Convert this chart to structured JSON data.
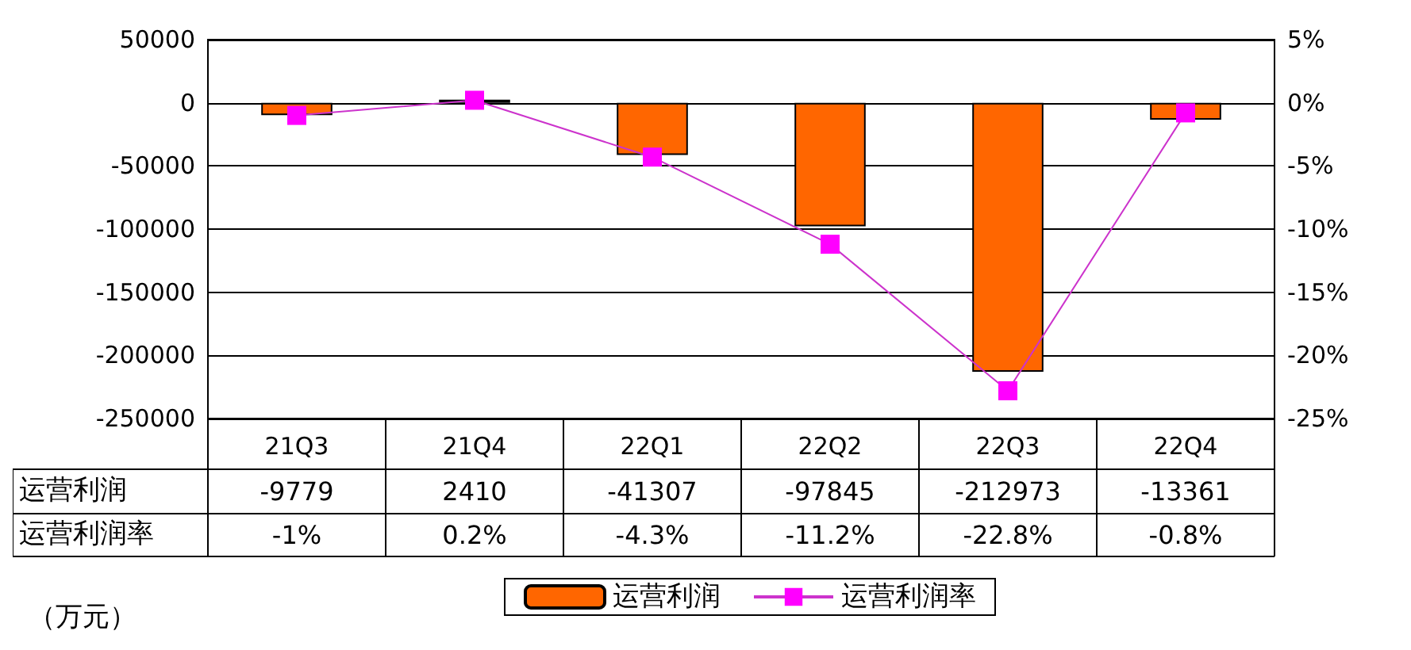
{
  "chart_data": {
    "type": "bar",
    "categories": [
      "21Q3",
      "21Q4",
      "22Q1",
      "22Q2",
      "22Q3",
      "22Q4"
    ],
    "series": [
      {
        "name": "运营利润",
        "color": "#ff6600",
        "values": [
          -9779,
          2410,
          -41307,
          -97845,
          -212973,
          -13361
        ],
        "value_labels": [
          "-9779",
          "2410",
          "-41307",
          "-97845",
          "-212973",
          "-13361"
        ]
      },
      {
        "name": "运营利润率",
        "type": "line",
        "axis": "y2",
        "color": "#ff00ff",
        "values": [
          -1,
          0.2,
          -4.3,
          -11.2,
          -22.8,
          -0.8
        ],
        "value_labels": [
          "-1%",
          "0.2%",
          "-4.3%",
          "-11.2%",
          "-22.8%",
          "-0.8%"
        ]
      }
    ],
    "ylim": [
      -250000,
      50000
    ],
    "yticks": [
      -250000,
      -200000,
      -150000,
      -100000,
      -50000,
      0,
      50000
    ],
    "y2lim": [
      -25,
      5
    ],
    "y2ticks": [
      {
        "value": -25,
        "label": "-25%"
      },
      {
        "value": -20,
        "label": "-20%"
      },
      {
        "value": -15,
        "label": "-15%"
      },
      {
        "value": -10,
        "label": "-10%"
      },
      {
        "value": -5,
        "label": "-5%"
      },
      {
        "value": 0,
        "label": "0%"
      },
      {
        "value": 5,
        "label": "5%"
      }
    ],
    "grid": "y",
    "legend": "bottom",
    "marker": "square",
    "line_style": "solid",
    "annotations": [
      "（万元）"
    ]
  }
}
